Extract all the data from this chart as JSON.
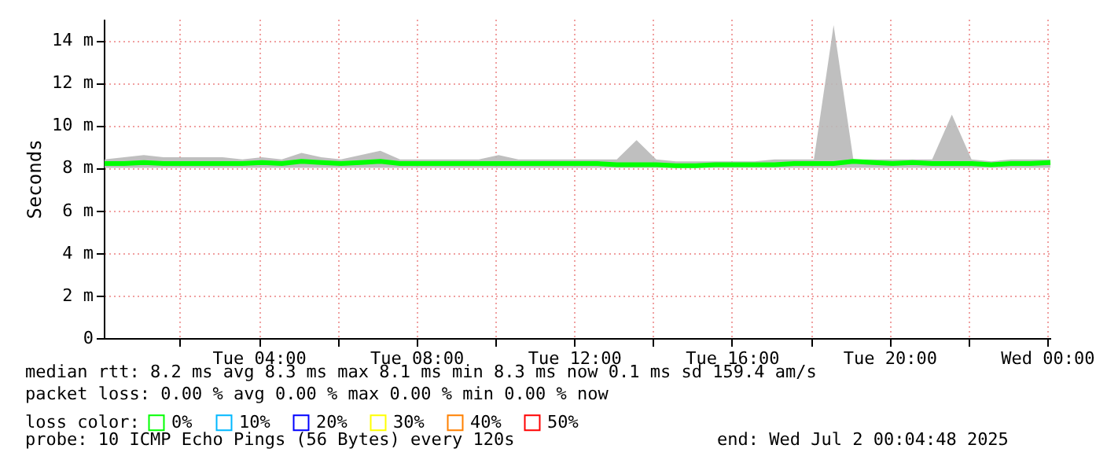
{
  "chart_data": {
    "type": "line",
    "ylabel": "Seconds",
    "x": [
      "2025-07-01T00:05",
      "2025-07-01T00:35",
      "2025-07-01T01:05",
      "2025-07-01T01:35",
      "2025-07-01T02:05",
      "2025-07-01T02:35",
      "2025-07-01T03:05",
      "2025-07-01T03:35",
      "2025-07-01T04:05",
      "2025-07-01T04:35",
      "2025-07-01T05:05",
      "2025-07-01T05:35",
      "2025-07-01T06:05",
      "2025-07-01T06:35",
      "2025-07-01T07:05",
      "2025-07-01T07:35",
      "2025-07-01T08:05",
      "2025-07-01T08:35",
      "2025-07-01T09:05",
      "2025-07-01T09:35",
      "2025-07-01T10:05",
      "2025-07-01T10:35",
      "2025-07-01T11:05",
      "2025-07-01T11:35",
      "2025-07-01T12:05",
      "2025-07-01T12:35",
      "2025-07-01T13:05",
      "2025-07-01T13:35",
      "2025-07-01T14:05",
      "2025-07-01T14:35",
      "2025-07-01T15:05",
      "2025-07-01T15:35",
      "2025-07-01T16:05",
      "2025-07-01T16:35",
      "2025-07-01T17:05",
      "2025-07-01T17:35",
      "2025-07-01T18:05",
      "2025-07-01T18:35",
      "2025-07-01T19:05",
      "2025-07-01T19:35",
      "2025-07-01T20:05",
      "2025-07-01T20:35",
      "2025-07-01T21:05",
      "2025-07-01T21:35",
      "2025-07-01T22:05",
      "2025-07-01T22:35",
      "2025-07-01T23:05",
      "2025-07-01T23:35",
      "2025-07-02T00:05"
    ],
    "series": [
      {
        "name": "0%",
        "color": "#00ff00",
        "values": [
          8.2,
          8.2,
          8.25,
          8.2,
          8.2,
          8.2,
          8.2,
          8.2,
          8.25,
          8.2,
          8.3,
          8.25,
          8.2,
          8.25,
          8.3,
          8.2,
          8.2,
          8.2,
          8.2,
          8.2,
          8.2,
          8.2,
          8.2,
          8.2,
          8.2,
          8.2,
          8.15,
          8.15,
          8.15,
          8.1,
          8.1,
          8.15,
          8.15,
          8.15,
          8.15,
          8.2,
          8.2,
          8.2,
          8.3,
          8.25,
          8.2,
          8.25,
          8.2,
          8.2,
          8.2,
          8.15,
          8.2,
          8.2,
          8.25
        ],
        "lower": [
          8.0,
          8.0,
          8.0,
          8.0,
          8.0,
          8.0,
          8.0,
          8.0,
          8.0,
          8.0,
          8.0,
          8.0,
          8.0,
          8.0,
          8.0,
          8.0,
          8.0,
          8.0,
          8.0,
          8.0,
          8.0,
          8.0,
          8.0,
          8.0,
          8.0,
          8.0,
          8.0,
          8.0,
          8.0,
          8.0,
          8.0,
          8.0,
          8.0,
          8.0,
          8.0,
          8.0,
          8.0,
          8.0,
          8.0,
          8.0,
          8.0,
          8.0,
          8.0,
          8.0,
          8.0,
          8.0,
          8.0,
          8.0,
          8.0
        ],
        "upper": [
          8.4,
          8.5,
          8.6,
          8.5,
          8.5,
          8.5,
          8.5,
          8.4,
          8.5,
          8.4,
          8.7,
          8.5,
          8.4,
          8.6,
          8.8,
          8.4,
          8.4,
          8.4,
          8.4,
          8.4,
          8.6,
          8.4,
          8.4,
          8.4,
          8.4,
          8.4,
          8.4,
          9.3,
          8.4,
          8.3,
          8.3,
          8.3,
          8.3,
          8.3,
          8.4,
          8.4,
          8.4,
          14.7,
          8.4,
          8.4,
          8.4,
          8.4,
          8.4,
          10.5,
          8.4,
          8.3,
          8.4,
          8.4,
          8.4
        ]
      },
      {
        "name": "10%",
        "color": "#00b8ff",
        "values": [
          null,
          null,
          null,
          null,
          null,
          null,
          null,
          null,
          null,
          null,
          null,
          null,
          null,
          null,
          null,
          null,
          null,
          null,
          null,
          null,
          null,
          null,
          null,
          null,
          null,
          null,
          null,
          null,
          null,
          null,
          null,
          null,
          null,
          null,
          null,
          null,
          null,
          null,
          null,
          null,
          null,
          null,
          null,
          null,
          null,
          null,
          null,
          null,
          null
        ]
      },
      {
        "name": "20%",
        "color": "#0000ff",
        "values": [
          null,
          null,
          null,
          null,
          null,
          null,
          null,
          null,
          null,
          null,
          null,
          null,
          null,
          null,
          null,
          null,
          null,
          null,
          null,
          null,
          null,
          null,
          null,
          null,
          null,
          null,
          null,
          null,
          null,
          null,
          null,
          null,
          null,
          null,
          null,
          null,
          null,
          null,
          null,
          null,
          null,
          null,
          null,
          null,
          null,
          null,
          null,
          null,
          null
        ]
      },
      {
        "name": "30%",
        "color": "#ffff00",
        "values": [
          null,
          null,
          null,
          null,
          null,
          null,
          null,
          null,
          null,
          null,
          null,
          null,
          null,
          null,
          null,
          null,
          null,
          null,
          null,
          null,
          null,
          null,
          null,
          null,
          null,
          null,
          null,
          null,
          null,
          null,
          null,
          null,
          null,
          null,
          null,
          null,
          null,
          null,
          null,
          null,
          null,
          null,
          null,
          null,
          null,
          null,
          null,
          null,
          null
        ]
      },
      {
        "name": "40%",
        "color": "#ff8000",
        "values": [
          null,
          null,
          null,
          null,
          null,
          null,
          null,
          null,
          null,
          null,
          null,
          null,
          null,
          null,
          null,
          null,
          null,
          null,
          null,
          null,
          null,
          null,
          null,
          null,
          null,
          null,
          null,
          null,
          null,
          null,
          null,
          null,
          null,
          null,
          null,
          null,
          null,
          null,
          null,
          null,
          null,
          null,
          null,
          null,
          null,
          null,
          null,
          null,
          null
        ]
      },
      {
        "name": "50%",
        "color": "#ff0000",
        "values": [
          null,
          null,
          null,
          null,
          null,
          null,
          null,
          null,
          null,
          null,
          null,
          null,
          null,
          null,
          null,
          null,
          null,
          null,
          null,
          null,
          null,
          null,
          null,
          null,
          null,
          null,
          null,
          null,
          null,
          null,
          null,
          null,
          null,
          null,
          null,
          null,
          null,
          null,
          null,
          null,
          null,
          null,
          null,
          null,
          null,
          null,
          null,
          null,
          null
        ]
      }
    ],
    "legend_title": "loss color:",
    "legend": "bottom",
    "xlim": [
      "2025-07-01T00:04",
      "2025-07-02T00:05"
    ],
    "xticks": [
      {
        "value": "2025-07-01T02:00",
        "label": null
      },
      {
        "value": "2025-07-01T04:00",
        "label": "Tue 04:00"
      },
      {
        "value": "2025-07-01T06:00",
        "label": null
      },
      {
        "value": "2025-07-01T08:00",
        "label": "Tue 08:00"
      },
      {
        "value": "2025-07-01T10:00",
        "label": null
      },
      {
        "value": "2025-07-01T12:00",
        "label": "Tue 12:00"
      },
      {
        "value": "2025-07-01T14:00",
        "label": null
      },
      {
        "value": "2025-07-01T16:00",
        "label": "Tue 16:00"
      },
      {
        "value": "2025-07-01T18:00",
        "label": null
      },
      {
        "value": "2025-07-01T20:00",
        "label": "Tue 20:00"
      },
      {
        "value": "2025-07-01T22:00",
        "label": null
      },
      {
        "value": "2025-07-02T00:00",
        "label": "Wed 00:00"
      }
    ],
    "ylim": [
      0,
      15
    ],
    "yticks": [
      0,
      {
        "value": 2,
        "label": "2 m"
      },
      {
        "value": 4,
        "label": "4 m"
      },
      {
        "value": 6,
        "label": "6 m"
      },
      {
        "value": 8,
        "label": "8 m"
      },
      {
        "value": 10,
        "label": "10 m"
      },
      {
        "value": 12,
        "label": "12 m"
      },
      {
        "value": 14,
        "label": "14 m"
      }
    ],
    "grid": true,
    "annotations": [
      "median rtt:  8.2 ms avg  8.3 ms max  8.1 ms min  8.3 ms now  0.1 ms sd  159.4   am/s",
      "packet loss: 0.00 % avg  0.00 % max  0.00 % min  0.00 % now",
      "probe:       10 ICMP Echo Pings (56 Bytes) every 120s",
      "end: Wed Jul  2 00:04:48 2025"
    ]
  }
}
